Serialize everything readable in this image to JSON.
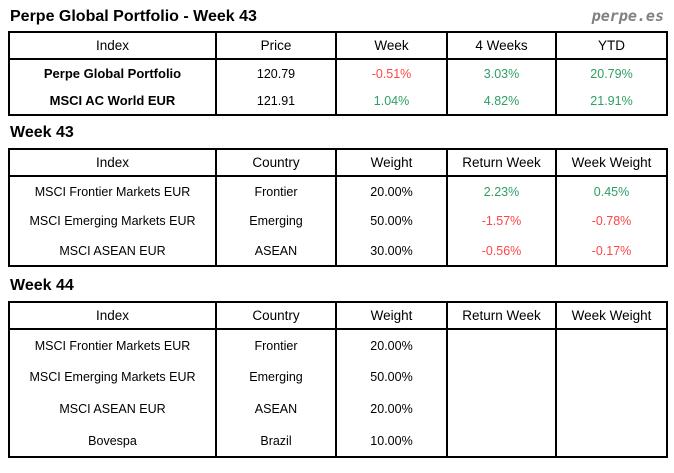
{
  "header": {
    "title": "Perpe Global Portfolio - Week 43",
    "logo": "perpe.es"
  },
  "colors": {
    "positive": "#2e9e63",
    "negative": "#ff4545",
    "logo": "#808080",
    "border": "#000000"
  },
  "summary_table": {
    "headers": [
      "Index",
      "Price",
      "Week",
      "4 Weeks",
      "YTD"
    ],
    "rows": [
      {
        "cells": [
          {
            "text": "Perpe Global Portfolio"
          },
          {
            "text": "120.79"
          },
          {
            "text": "-0.51%",
            "color": "#ff4545"
          },
          {
            "text": "3.03%",
            "color": "#2e9e63"
          },
          {
            "text": "20.79%",
            "color": "#2e9e63"
          }
        ]
      },
      {
        "cells": [
          {
            "text": "MSCI AC World EUR"
          },
          {
            "text": "121.91"
          },
          {
            "text": "1.04%",
            "color": "#2e9e63"
          },
          {
            "text": "4.82%",
            "color": "#2e9e63"
          },
          {
            "text": "21.91%",
            "color": "#2e9e63"
          }
        ]
      }
    ]
  },
  "week43": {
    "heading": "Week 43",
    "table": {
      "headers": [
        "Index",
        "Country",
        "Weight",
        "Return Week",
        "Week Weight"
      ],
      "rows": [
        {
          "cells": [
            {
              "text": "MSCI Frontier Markets EUR"
            },
            {
              "text": "Frontier"
            },
            {
              "text": "20.00%"
            },
            {
              "text": "2.23%",
              "color": "#2e9e63"
            },
            {
              "text": "0.45%",
              "color": "#2e9e63"
            }
          ]
        },
        {
          "cells": [
            {
              "text": "MSCI Emerging Markets EUR"
            },
            {
              "text": "Emerging"
            },
            {
              "text": "50.00%"
            },
            {
              "text": "-1.57%",
              "color": "#ff4545"
            },
            {
              "text": "-0.78%",
              "color": "#ff4545"
            }
          ]
        },
        {
          "cells": [
            {
              "text": "MSCI ASEAN EUR"
            },
            {
              "text": "ASEAN"
            },
            {
              "text": "30.00%"
            },
            {
              "text": "-0.56%",
              "color": "#ff4545"
            },
            {
              "text": "-0.17%",
              "color": "#ff4545"
            }
          ]
        }
      ]
    }
  },
  "week44": {
    "heading": "Week 44",
    "table": {
      "headers": [
        "Index",
        "Country",
        "Weight",
        "Return Week",
        "Week Weight"
      ],
      "rows": [
        {
          "cells": [
            {
              "text": "MSCI Frontier Markets EUR"
            },
            {
              "text": "Frontier"
            },
            {
              "text": "20.00%"
            },
            {
              "text": ""
            },
            {
              "text": ""
            }
          ]
        },
        {
          "cells": [
            {
              "text": "MSCI Emerging Markets EUR"
            },
            {
              "text": "Emerging"
            },
            {
              "text": "50.00%"
            },
            {
              "text": ""
            },
            {
              "text": ""
            }
          ]
        },
        {
          "cells": [
            {
              "text": "MSCI ASEAN EUR"
            },
            {
              "text": "ASEAN"
            },
            {
              "text": "20.00%"
            },
            {
              "text": ""
            },
            {
              "text": ""
            }
          ]
        },
        {
          "cells": [
            {
              "text": "Bovespa"
            },
            {
              "text": "Brazil"
            },
            {
              "text": "10.00%"
            },
            {
              "text": ""
            },
            {
              "text": ""
            }
          ]
        }
      ]
    }
  }
}
